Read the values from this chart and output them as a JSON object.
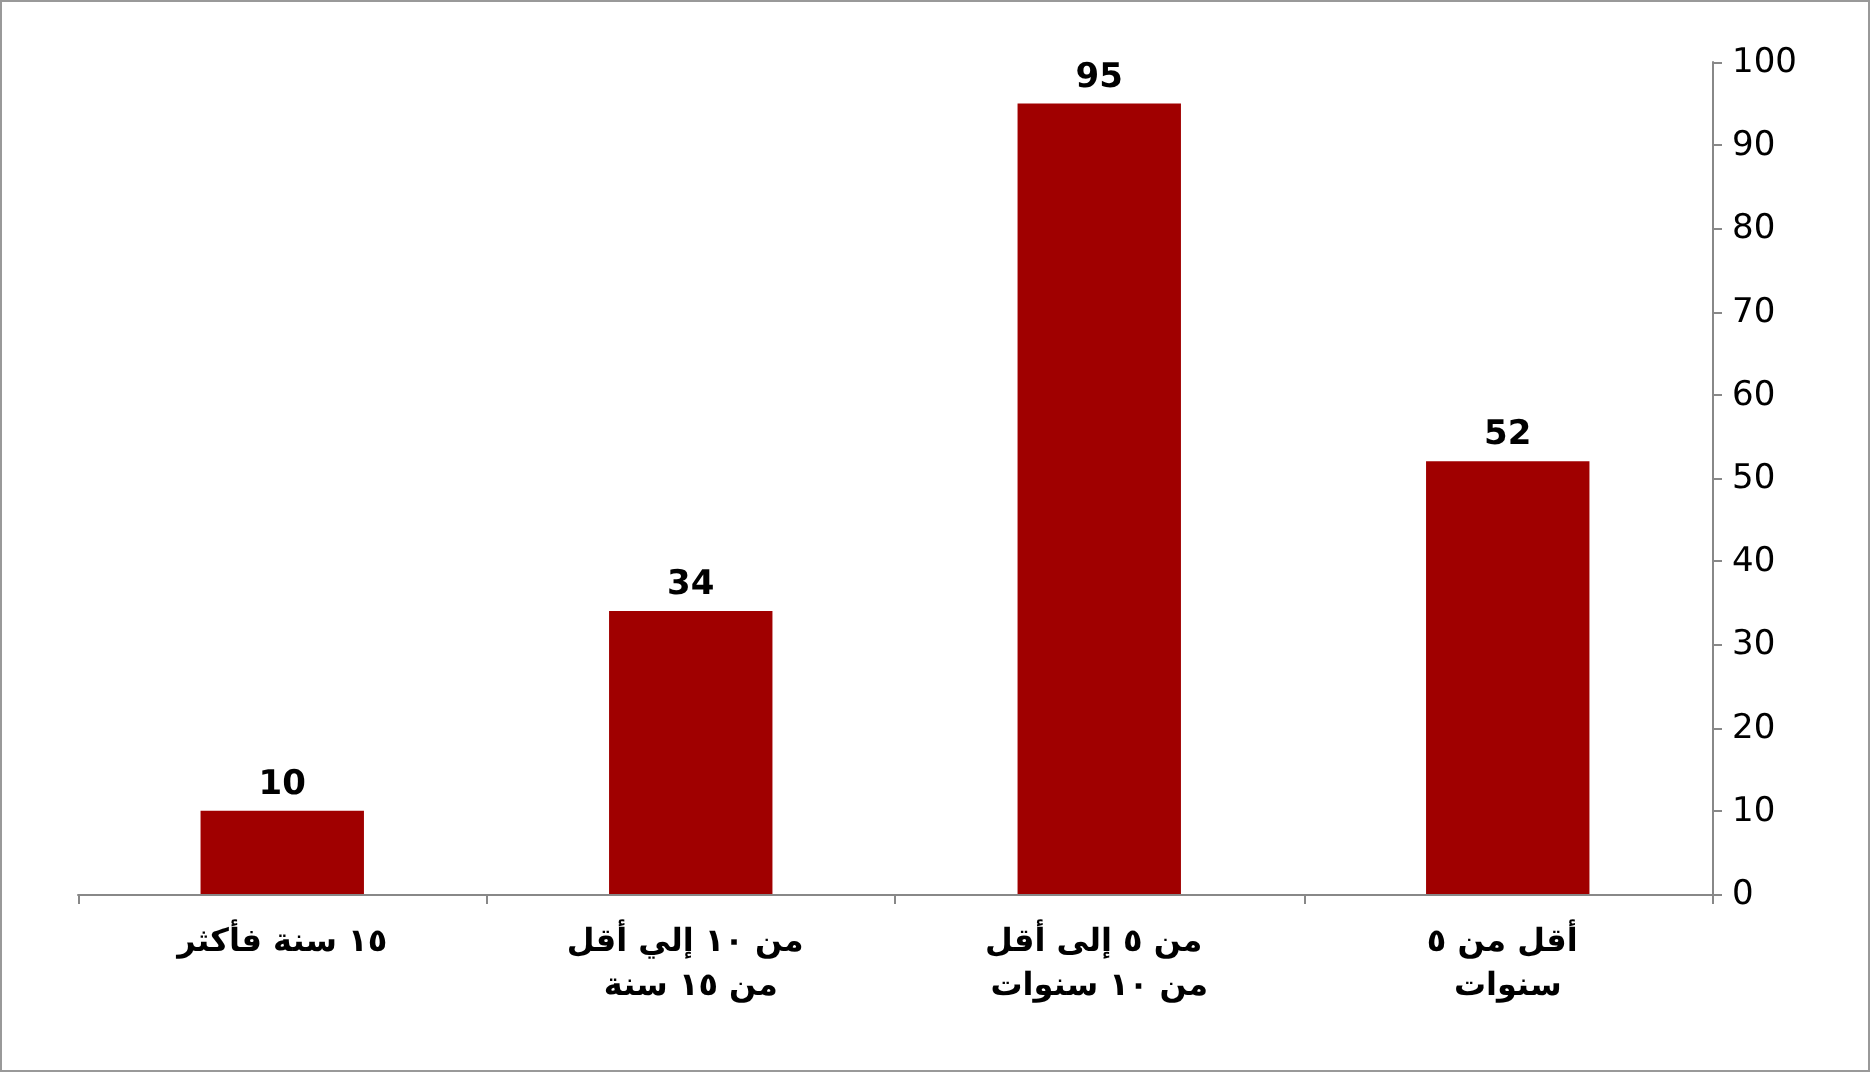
{
  "chart_data": {
    "type": "bar",
    "categories": [
      "١٥ سنة فأكثر",
      "من ١٠ إلي أقل من ١٥ سنة",
      "من ٥ إلى أقل من ١٠ سنوات",
      "أقل من ٥ سنوات"
    ],
    "values": [
      10,
      34,
      95,
      52
    ],
    "color": "#a00000",
    "ylim": [
      0,
      100
    ],
    "yticks": [
      0,
      10,
      20,
      30,
      40,
      50,
      60,
      70,
      80,
      90,
      100
    ],
    "data_labels": true,
    "grid": false
  }
}
